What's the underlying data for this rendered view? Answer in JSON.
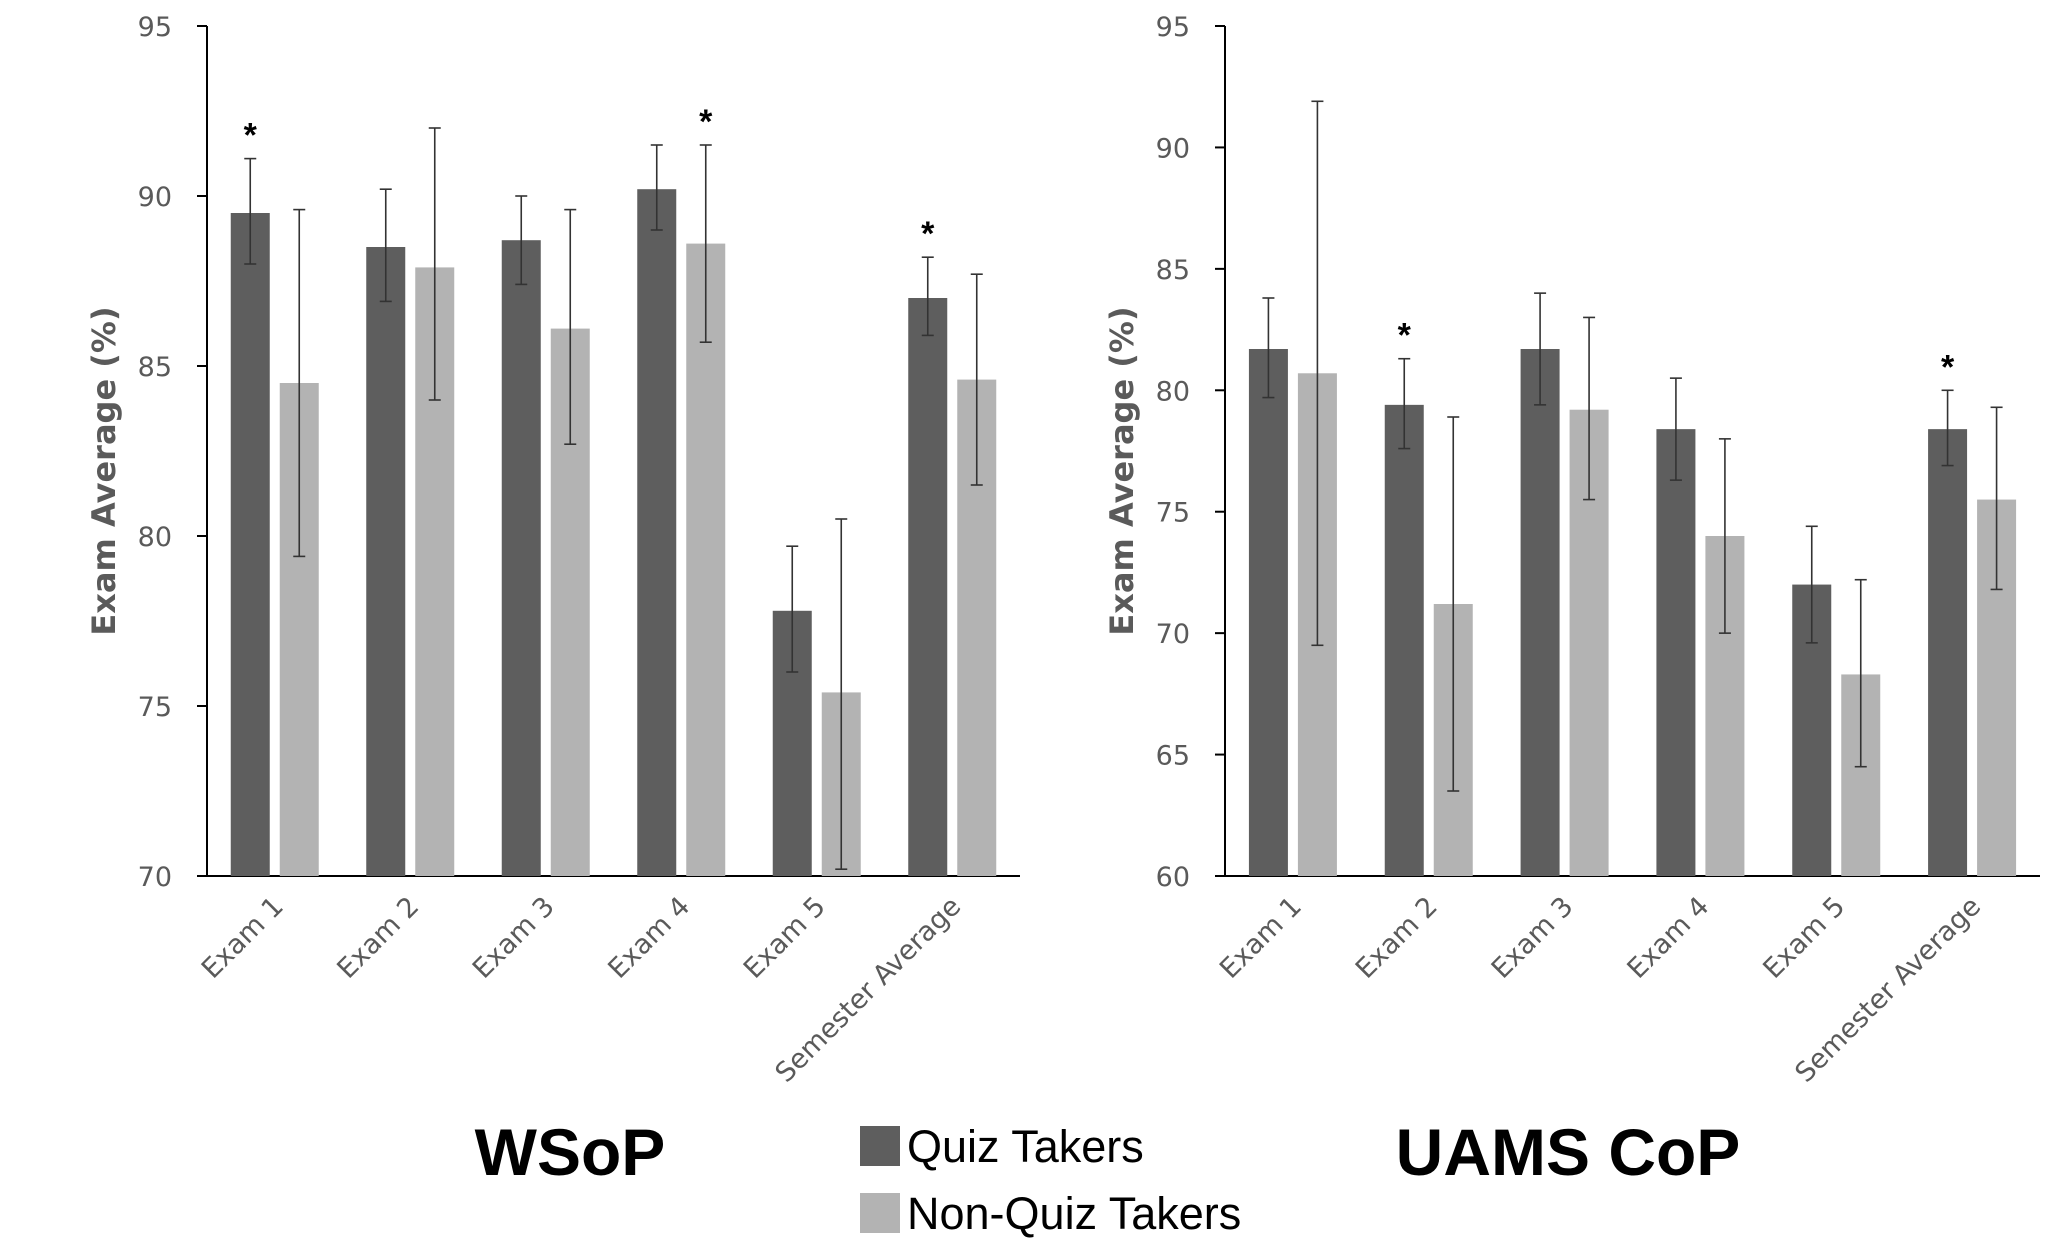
{
  "colors": {
    "quiz": "#5e5e5e",
    "nonquiz": "#b3b3b3",
    "axis": "#000000",
    "text": "#5a5a5a"
  },
  "legend": {
    "items": [
      {
        "label": "Quiz Takers",
        "color": "#5e5e5e"
      },
      {
        "label": "Non-Quiz Takers",
        "color": "#b3b3b3"
      }
    ]
  },
  "chart_data": [
    {
      "type": "bar",
      "title": "WSoP",
      "ylabel": "Exam Average (%)",
      "ylim": [
        70,
        95
      ],
      "yticks": [
        70,
        75,
        80,
        85,
        90,
        95
      ],
      "categories": [
        "Exam 1",
        "Exam 2",
        "Exam 3",
        "Exam 4",
        "Exam 5",
        "Semester Average"
      ],
      "series": [
        {
          "name": "Quiz Takers",
          "values": [
            89.5,
            88.5,
            88.7,
            90.2,
            77.8,
            87.0
          ],
          "err_low": [
            88.0,
            86.9,
            87.4,
            89.0,
            76.0,
            85.9
          ],
          "err_high": [
            91.1,
            90.2,
            90.0,
            91.5,
            79.7,
            88.2
          ]
        },
        {
          "name": "Non-Quiz Takers",
          "values": [
            84.5,
            87.9,
            86.1,
            88.6,
            75.4,
            84.6
          ],
          "err_low": [
            79.4,
            84.0,
            82.7,
            85.7,
            70.2,
            81.5
          ],
          "err_high": [
            89.6,
            92.0,
            89.6,
            91.5,
            80.5,
            87.7
          ]
        }
      ],
      "significance": [
        "*",
        "",
        "",
        "*",
        "",
        "*"
      ]
    },
    {
      "type": "bar",
      "title": "UAMS CoP",
      "ylabel": "Exam Average (%)",
      "ylim": [
        60,
        95
      ],
      "yticks": [
        60,
        65,
        70,
        75,
        80,
        85,
        90,
        95
      ],
      "categories": [
        "Exam 1",
        "Exam 2",
        "Exam 3",
        "Exam 4",
        "Exam 5",
        "Semester Average"
      ],
      "series": [
        {
          "name": "Quiz Takers",
          "values": [
            81.7,
            79.4,
            81.7,
            78.4,
            72.0,
            78.4
          ],
          "err_low": [
            79.7,
            77.6,
            79.4,
            76.3,
            69.6,
            76.9
          ],
          "err_high": [
            83.8,
            81.3,
            84.0,
            80.5,
            74.4,
            80.0
          ]
        },
        {
          "name": "Non-Quiz Takers",
          "values": [
            80.7,
            71.2,
            79.2,
            74.0,
            68.3,
            75.5
          ],
          "err_low": [
            69.5,
            63.5,
            75.5,
            70.0,
            64.5,
            71.8
          ],
          "err_high": [
            91.9,
            78.9,
            83.0,
            78.0,
            72.2,
            79.3
          ]
        }
      ],
      "significance": [
        "",
        "*",
        "",
        "",
        "",
        "*"
      ]
    }
  ]
}
